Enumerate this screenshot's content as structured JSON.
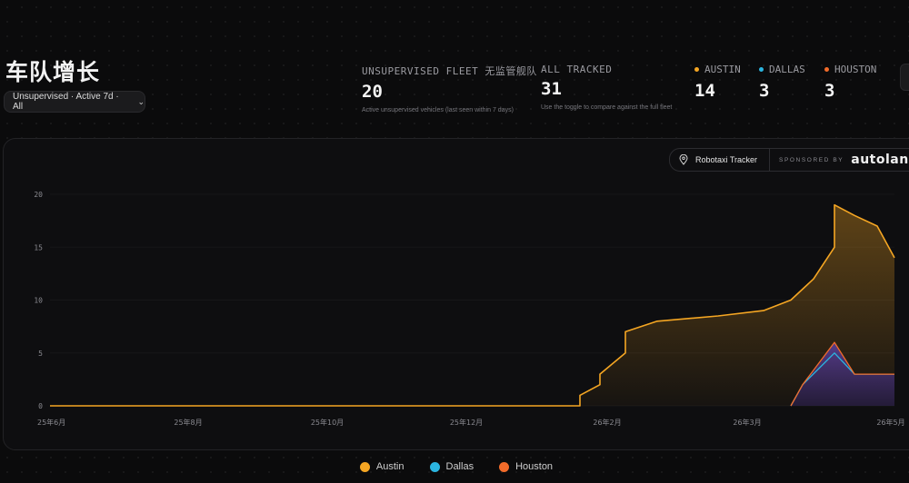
{
  "header": {
    "title": "车队增长",
    "filter_label": "Unsupervised · Active 7d · All"
  },
  "stats": {
    "unsupervised": {
      "label": "UNSUPERVISED FLEET 无监管舰队",
      "value": "20",
      "sub": "Active unsupervised vehicles (last seen within 7 days)"
    },
    "tracked": {
      "label": "ALL TRACKED",
      "value": "31",
      "sub": "Use the toggle to compare against the full fleet"
    }
  },
  "cities": [
    {
      "name": "AUSTIN",
      "value": "14",
      "color": "#f5a623"
    },
    {
      "name": "DALLAS",
      "value": "3",
      "color": "#2bb5e0"
    },
    {
      "name": "HOUSTON",
      "value": "3",
      "color": "#f26b2a"
    }
  ],
  "sponsor": {
    "tracker_label": "Robotaxi Tracker",
    "sponsored_label": "SPONSORED BY",
    "brand": "autolane"
  },
  "colors": {
    "austin": "#f5a623",
    "dallas": "#2bb5e0",
    "houston": "#f26b2a",
    "lower_fill": "#3a2a5e"
  },
  "chart_data": {
    "type": "line",
    "ylim": [
      0,
      20
    ],
    "y_ticks": [
      "0",
      "5",
      "10",
      "15",
      "20"
    ],
    "x_ticks": [
      "25年6月",
      "25年8月",
      "25年10月",
      "25年12月",
      "26年2月",
      "26年3月",
      "26年5月"
    ],
    "legend": [
      "Austin",
      "Dallas",
      "Houston"
    ],
    "legend_position": "bottom",
    "series": [
      {
        "name": "Austin",
        "color": "#f5a623",
        "points": [
          [
            "25年6月",
            0
          ],
          [
            "26年1月下旬",
            0
          ],
          [
            "26年1月下旬",
            1
          ],
          [
            "26年2月初",
            2
          ],
          [
            "26年2月初",
            3
          ],
          [
            "26年2月上旬",
            5
          ],
          [
            "26年2月上旬",
            7
          ],
          [
            "26年2月中旬",
            8
          ],
          [
            "26年3月上旬",
            8.5
          ],
          [
            "26年3月中旬",
            9
          ],
          [
            "26年3月下旬",
            10
          ],
          [
            "26年4月上旬",
            12
          ],
          [
            "26年4月中旬",
            15
          ],
          [
            "26年4月中旬",
            19
          ],
          [
            "26年4月下旬",
            18
          ],
          [
            "26年5月初",
            17
          ],
          [
            "26年5月",
            14
          ]
        ]
      },
      {
        "name": "Dallas",
        "color": "#2bb5e0",
        "points": [
          [
            "26年3月下旬",
            0
          ],
          [
            "26年4月初",
            2
          ],
          [
            "26年4月中旬",
            5
          ],
          [
            "26年4月下旬",
            3
          ],
          [
            "26年5月",
            3
          ]
        ]
      },
      {
        "name": "Houston",
        "color": "#f26b2a",
        "points": [
          [
            "26年3月下旬",
            0
          ],
          [
            "26年4月初",
            2
          ],
          [
            "26年4月中旬",
            6
          ],
          [
            "26年4月下旬",
            3
          ],
          [
            "26年5月",
            3
          ]
        ]
      }
    ]
  }
}
